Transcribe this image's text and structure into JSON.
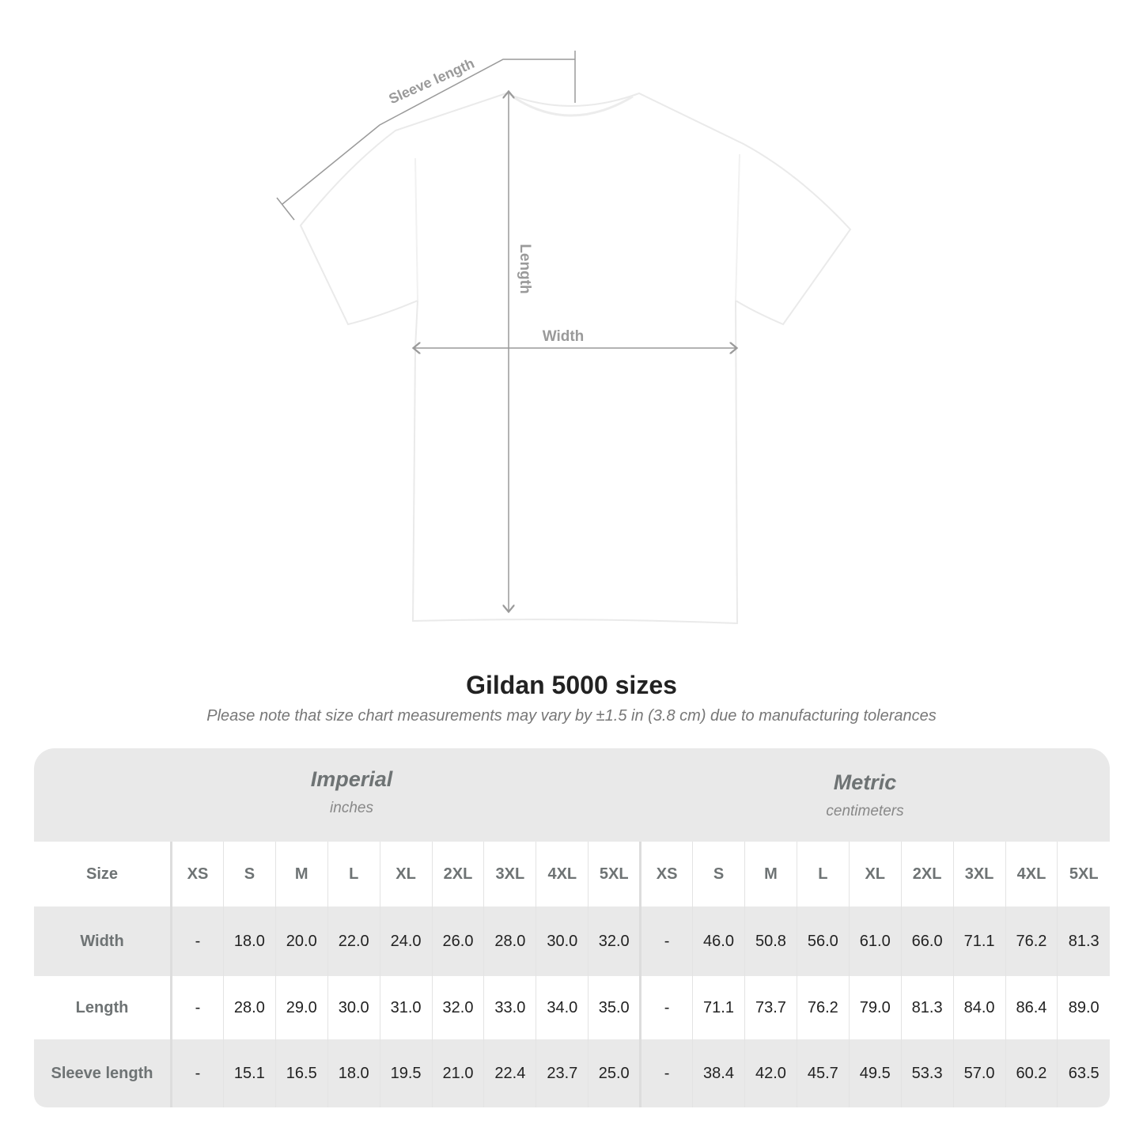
{
  "diagram": {
    "labels": {
      "sleeve": "Sleeve length",
      "length": "Length",
      "width": "Width"
    },
    "line_color": "#9a9a9a"
  },
  "header": {
    "title": "Gildan 5000 sizes",
    "subtitle": "Please note that size chart measurements may vary by ±1.5 in (3.8 cm) due to manufacturing tolerances"
  },
  "table": {
    "imperial": {
      "name": "Imperial",
      "unit": "inches"
    },
    "metric": {
      "name": "Metric",
      "unit": "centimeters"
    },
    "size_label": "Size",
    "sizes": [
      "XS",
      "S",
      "M",
      "L",
      "XL",
      "2XL",
      "3XL",
      "4XL",
      "5XL"
    ],
    "rows": [
      {
        "label": "Width",
        "imperial": [
          "-",
          "18.0",
          "20.0",
          "22.0",
          "24.0",
          "26.0",
          "28.0",
          "30.0",
          "32.0"
        ],
        "metric": [
          "-",
          "46.0",
          "50.8",
          "56.0",
          "61.0",
          "66.0",
          "71.1",
          "76.2",
          "81.3"
        ]
      },
      {
        "label": "Length",
        "imperial": [
          "-",
          "28.0",
          "29.0",
          "30.0",
          "31.0",
          "32.0",
          "33.0",
          "34.0",
          "35.0"
        ],
        "metric": [
          "-",
          "71.1",
          "73.7",
          "76.2",
          "79.0",
          "81.3",
          "84.0",
          "86.4",
          "89.0"
        ]
      },
      {
        "label": "Sleeve length",
        "imperial": [
          "-",
          "15.1",
          "16.5",
          "18.0",
          "19.5",
          "21.0",
          "22.4",
          "23.7",
          "25.0"
        ],
        "metric": [
          "-",
          "38.4",
          "42.0",
          "45.7",
          "49.5",
          "53.3",
          "57.0",
          "60.2",
          "63.5"
        ]
      }
    ]
  }
}
